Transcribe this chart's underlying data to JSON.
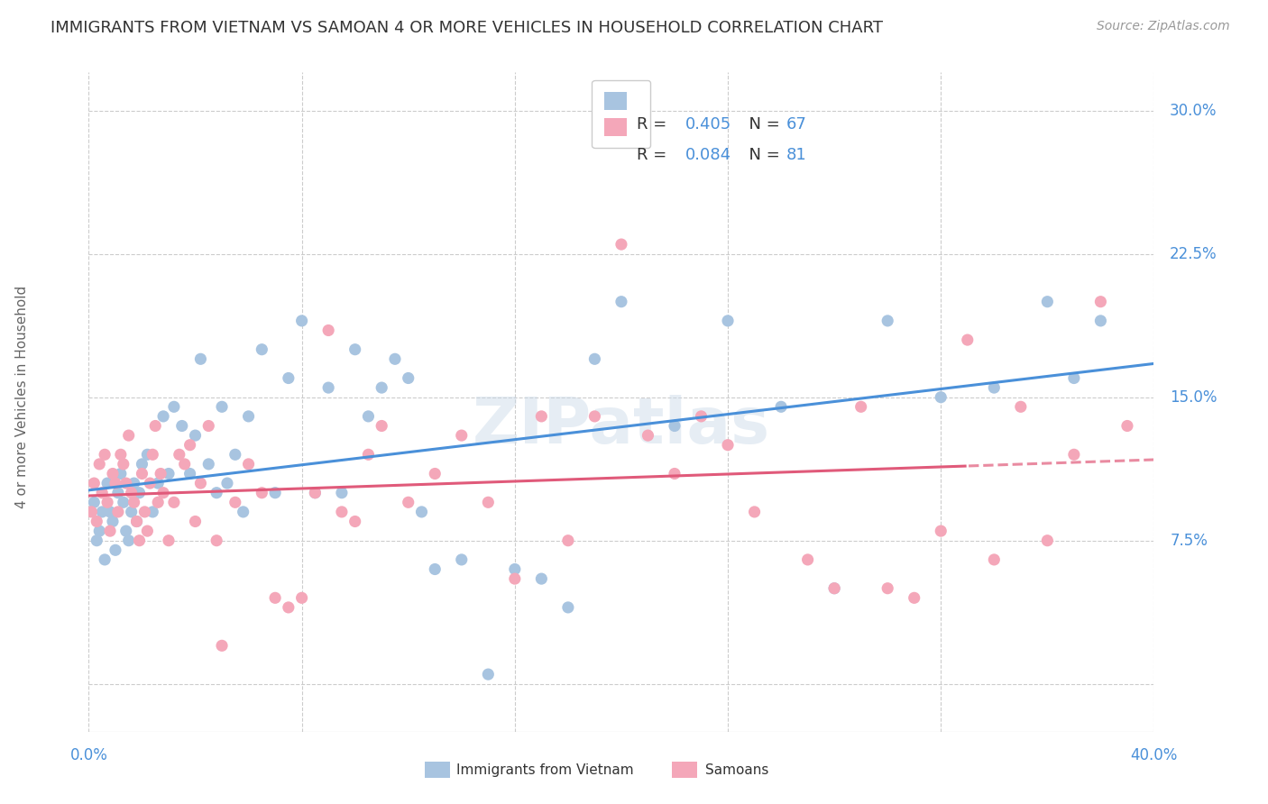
{
  "title": "IMMIGRANTS FROM VIETNAM VS SAMOAN 4 OR MORE VEHICLES IN HOUSEHOLD CORRELATION CHART",
  "source": "Source: ZipAtlas.com",
  "ylabel": "4 or more Vehicles in Household",
  "xlim": [
    0.0,
    40.0
  ],
  "ylim": [
    -2.5,
    32.0
  ],
  "ytick_vals": [
    0.0,
    7.5,
    15.0,
    22.5,
    30.0
  ],
  "ytick_labels": [
    "",
    "7.5%",
    "15.0%",
    "22.5%",
    "30.0%"
  ],
  "watermark": "ZIPatlas",
  "color_vietnam": "#a8c4e0",
  "color_samoan": "#f4a7b9",
  "color_reg_vietnam": "#4a90d9",
  "color_reg_samoan": "#e05a7a",
  "color_blue": "#4a90d9",
  "color_dark": "#333333",
  "color_grid": "#cccccc",
  "vietnam_x": [
    0.2,
    0.3,
    0.4,
    0.5,
    0.6,
    0.7,
    0.8,
    0.9,
    1.0,
    1.1,
    1.2,
    1.3,
    1.4,
    1.5,
    1.6,
    1.7,
    1.8,
    1.9,
    2.0,
    2.2,
    2.4,
    2.6,
    2.8,
    3.0,
    3.2,
    3.5,
    3.8,
    4.0,
    4.2,
    4.5,
    4.8,
    5.0,
    5.2,
    5.5,
    5.8,
    6.0,
    6.5,
    7.0,
    7.5,
    8.0,
    8.5,
    9.0,
    9.5,
    10.0,
    10.5,
    11.0,
    11.5,
    12.0,
    12.5,
    13.0,
    14.0,
    15.0,
    16.0,
    17.0,
    18.0,
    19.0,
    20.0,
    22.0,
    24.0,
    26.0,
    28.0,
    30.0,
    32.0,
    34.0,
    36.0,
    37.0,
    38.0
  ],
  "vietnam_y": [
    9.5,
    7.5,
    8.0,
    9.0,
    6.5,
    10.5,
    9.0,
    8.5,
    7.0,
    10.0,
    11.0,
    9.5,
    8.0,
    7.5,
    9.0,
    10.5,
    8.5,
    10.0,
    11.5,
    12.0,
    9.0,
    10.5,
    14.0,
    11.0,
    14.5,
    13.5,
    11.0,
    13.0,
    17.0,
    11.5,
    10.0,
    14.5,
    10.5,
    12.0,
    9.0,
    14.0,
    17.5,
    10.0,
    16.0,
    19.0,
    10.0,
    15.5,
    10.0,
    17.5,
    14.0,
    15.5,
    17.0,
    16.0,
    9.0,
    6.0,
    6.5,
    0.5,
    6.0,
    5.5,
    4.0,
    17.0,
    20.0,
    13.5,
    19.0,
    14.5,
    5.0,
    19.0,
    15.0,
    15.5,
    20.0,
    16.0,
    19.0
  ],
  "samoan_x": [
    0.1,
    0.2,
    0.3,
    0.4,
    0.5,
    0.6,
    0.7,
    0.8,
    0.9,
    1.0,
    1.1,
    1.2,
    1.3,
    1.4,
    1.5,
    1.6,
    1.7,
    1.8,
    1.9,
    2.0,
    2.1,
    2.2,
    2.3,
    2.4,
    2.5,
    2.6,
    2.7,
    2.8,
    3.0,
    3.2,
    3.4,
    3.6,
    3.8,
    4.0,
    4.2,
    4.5,
    4.8,
    5.0,
    5.5,
    6.0,
    6.5,
    7.0,
    7.5,
    8.0,
    8.5,
    9.0,
    9.5,
    10.0,
    10.5,
    11.0,
    12.0,
    13.0,
    14.0,
    15.0,
    16.0,
    17.0,
    18.0,
    19.0,
    20.0,
    21.0,
    22.0,
    23.0,
    24.0,
    25.0,
    27.0,
    28.0,
    29.0,
    30.0,
    31.0,
    32.0,
    33.0,
    34.0,
    35.0,
    36.0,
    37.0,
    38.0,
    39.0
  ],
  "samoan_y": [
    9.0,
    10.5,
    8.5,
    11.5,
    10.0,
    12.0,
    9.5,
    8.0,
    11.0,
    10.5,
    9.0,
    12.0,
    11.5,
    10.5,
    13.0,
    10.0,
    9.5,
    8.5,
    7.5,
    11.0,
    9.0,
    8.0,
    10.5,
    12.0,
    13.5,
    9.5,
    11.0,
    10.0,
    7.5,
    9.5,
    12.0,
    11.5,
    12.5,
    8.5,
    10.5,
    13.5,
    7.5,
    2.0,
    9.5,
    11.5,
    10.0,
    4.5,
    4.0,
    4.5,
    10.0,
    18.5,
    9.0,
    8.5,
    12.0,
    13.5,
    9.5,
    11.0,
    13.0,
    9.5,
    5.5,
    14.0,
    7.5,
    14.0,
    23.0,
    13.0,
    11.0,
    14.0,
    12.5,
    9.0,
    6.5,
    5.0,
    14.5,
    5.0,
    4.5,
    8.0,
    18.0,
    6.5,
    14.5,
    7.5,
    12.0,
    20.0,
    13.5
  ]
}
